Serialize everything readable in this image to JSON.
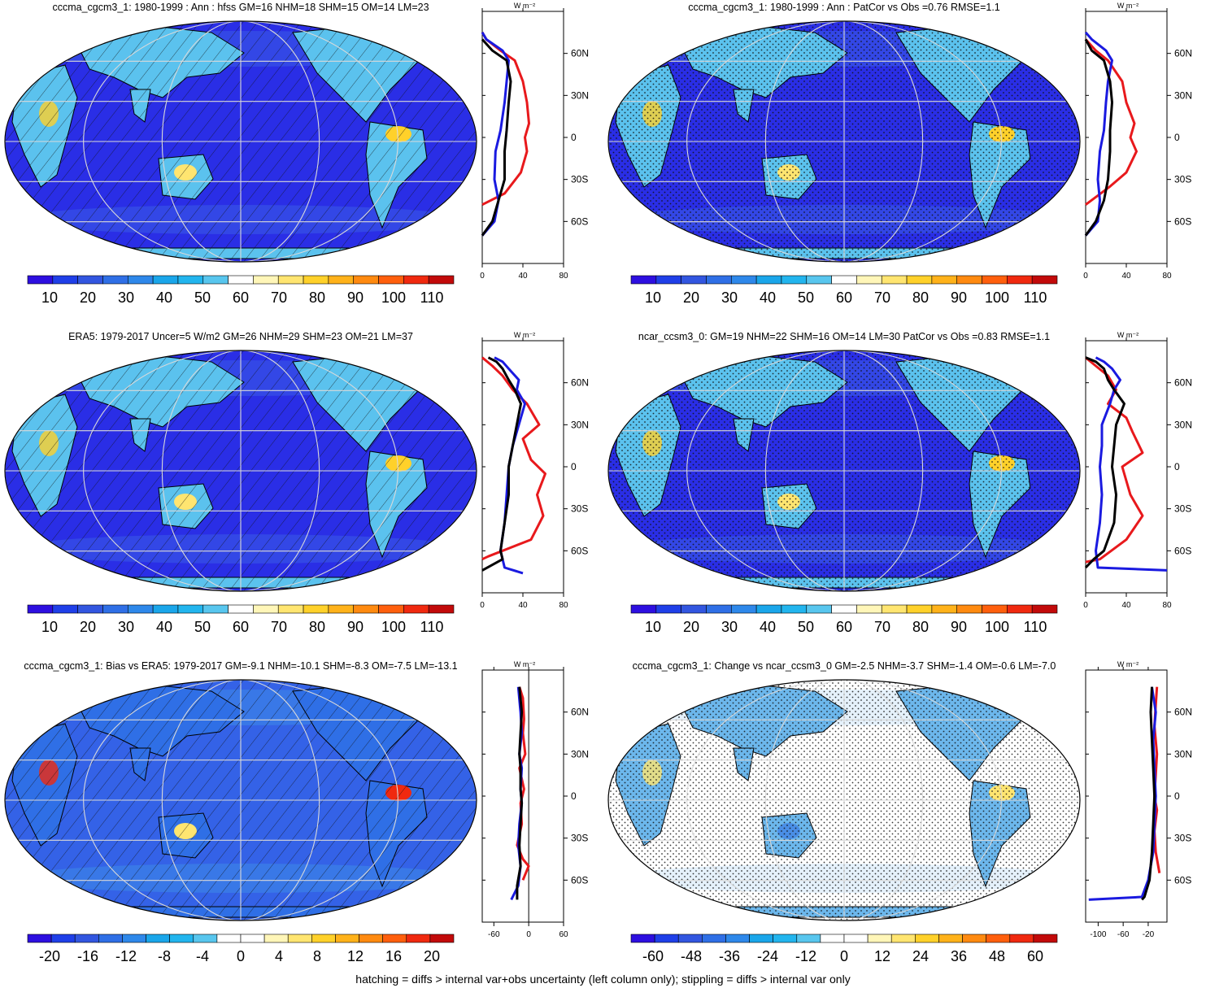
{
  "panels": [
    {
      "title": "cccma_cgcm3_1: 1980-1999 : Ann : hfss GM=16 NHM=18 SHM=15 OM=14 LM=23",
      "title_x": 281,
      "pattern": "hatch",
      "colorbar": [
        "10",
        "20",
        "30",
        "40",
        "50",
        "60",
        "70",
        "80",
        "90",
        "100",
        "110"
      ],
      "colorbar_scheme": "abs",
      "zonal": {
        "units": "W m⁻²",
        "x_ticks": [
          "0",
          "40",
          "80"
        ],
        "xlim": [
          0,
          80
        ],
        "zero_line": false,
        "series": [
          {
            "name": "model",
            "color": "#e8191c",
            "x": [
              0,
              22,
              38,
              44,
              42,
              46,
              44,
              40,
              32,
              18,
              4,
              0
            ],
            "lat": [
              -48,
              -40,
              -25,
              -10,
              0,
              10,
              25,
              40,
              55,
              62,
              70,
              75
            ]
          },
          {
            "name": "obs",
            "color": "#1a1ae0",
            "x": [
              0,
              12,
              16,
              12,
              13,
              18,
              22,
              24,
              26,
              20,
              4,
              0
            ],
            "lat": [
              -70,
              -60,
              -45,
              -30,
              -10,
              5,
              25,
              40,
              55,
              62,
              70,
              75
            ]
          },
          {
            "name": "other",
            "color": "#000000",
            "x": [
              0,
              10,
              16,
              22,
              22,
              24,
              26,
              28,
              24,
              10,
              0
            ],
            "lat": [
              -70,
              -60,
              -45,
              -30,
              -10,
              5,
              25,
              40,
              55,
              62,
              70
            ]
          }
        ]
      }
    },
    {
      "title": "cccma_cgcm3_1: 1980-1999 : Ann : PatCor vs Obs =0.76 RMSE=1.1",
      "title_x": 1037,
      "pattern": "stipple",
      "colorbar": [
        "10",
        "20",
        "30",
        "40",
        "50",
        "60",
        "70",
        "80",
        "90",
        "100",
        "110"
      ],
      "colorbar_scheme": "abs",
      "zonal": {
        "units": "W m⁻²",
        "x_ticks": [
          "0",
          "40",
          "80"
        ],
        "xlim": [
          0,
          80
        ],
        "zero_line": false,
        "series": [
          {
            "name": "model",
            "color": "#e8191c",
            "x": [
              0,
              24,
              40,
              50,
              44,
              48,
              40,
              36,
              22,
              10,
              0
            ],
            "lat": [
              -48,
              -35,
              -25,
              -10,
              0,
              10,
              25,
              40,
              55,
              62,
              70
            ]
          },
          {
            "name": "obs",
            "color": "#1a1ae0",
            "x": [
              0,
              12,
              14,
              12,
              14,
              18,
              20,
              22,
              26,
              20,
              6,
              0
            ],
            "lat": [
              -70,
              -60,
              -45,
              -30,
              -10,
              5,
              25,
              40,
              55,
              62,
              70,
              75
            ]
          },
          {
            "name": "other",
            "color": "#000000",
            "x": [
              0,
              10,
              18,
              22,
              24,
              24,
              26,
              24,
              18,
              6,
              0
            ],
            "lat": [
              -70,
              -60,
              -45,
              -30,
              -10,
              5,
              25,
              40,
              55,
              62,
              70
            ]
          }
        ]
      }
    },
    {
      "title": "ERA5: 1979-2017 Uncer=5 W/m2 GM=26 NHM=29 SHM=23 OM=21 LM=37",
      "title_x": 288,
      "pattern": "hatch",
      "colorbar": [
        "10",
        "20",
        "30",
        "40",
        "50",
        "60",
        "70",
        "80",
        "90",
        "100",
        "110"
      ],
      "colorbar_scheme": "abs",
      "zonal": {
        "units": "W m⁻²",
        "x_ticks": [
          "0",
          "40",
          "80"
        ],
        "xlim": [
          0,
          80
        ],
        "zero_line": false,
        "series": [
          {
            "name": "model",
            "color": "#e8191c",
            "x": [
              0,
              6,
              48,
              60,
              54,
              62,
              48,
              40,
              56,
              44,
              30,
              20,
              10,
              0
            ],
            "lat": [
              -66,
              -64,
              -52,
              -35,
              -20,
              -5,
              5,
              20,
              30,
              45,
              55,
              65,
              72,
              78
            ]
          },
          {
            "name": "obs",
            "color": "#1a1ae0",
            "x": [
              40,
              22,
              18,
              22,
              24,
              26,
              30,
              36,
              42,
              34,
              36,
              26,
              20,
              12
            ],
            "lat": [
              -76,
              -72,
              -60,
              -40,
              -20,
              0,
              15,
              30,
              45,
              55,
              62,
              70,
              75,
              78
            ]
          },
          {
            "name": "other",
            "color": "#000000",
            "x": [
              0,
              20,
              18,
              22,
              26,
              26,
              30,
              34,
              38,
              32,
              26,
              20,
              14,
              6
            ],
            "lat": [
              -74,
              -66,
              -60,
              -40,
              -20,
              0,
              15,
              30,
              45,
              55,
              62,
              70,
              75,
              78
            ]
          }
        ]
      }
    },
    {
      "title": "ncar_ccsm3_0: GM=19 NHM=22 SHM=16 OM=14 LM=30 PatCor vs Obs =0.83 RMSE=1.1",
      "title_x": 1045,
      "pattern": "stipple",
      "colorbar": [
        "10",
        "20",
        "30",
        "40",
        "50",
        "60",
        "70",
        "80",
        "90",
        "100",
        "110"
      ],
      "colorbar_scheme": "abs",
      "zonal": {
        "units": "W m⁻²",
        "x_ticks": [
          "0",
          "40",
          "80"
        ],
        "xlim": [
          0,
          80
        ],
        "zero_line": false,
        "series": [
          {
            "name": "model",
            "color": "#e8191c",
            "x": [
              0,
              14,
              40,
              56,
              44,
              36,
              56,
              46,
              40,
              22,
              30,
              22,
              10,
              0
            ],
            "lat": [
              -68,
              -66,
              -52,
              -35,
              -20,
              0,
              10,
              25,
              35,
              45,
              55,
              65,
              72,
              78
            ]
          },
          {
            "name": "obs",
            "color": "#1a1ae0",
            "x": [
              80,
              12,
              10,
              14,
              16,
              14,
              16,
              16,
              24,
              28,
              34,
              26,
              18,
              10
            ],
            "lat": [
              -74,
              -72,
              -60,
              -40,
              -20,
              0,
              15,
              30,
              45,
              55,
              62,
              70,
              75,
              78
            ]
          },
          {
            "name": "other",
            "color": "#000000",
            "x": [
              0,
              8,
              18,
              28,
              30,
              26,
              28,
              30,
              38,
              28,
              22,
              18,
              10,
              0
            ],
            "lat": [
              -72,
              -66,
              -60,
              -40,
              -20,
              0,
              15,
              30,
              45,
              55,
              62,
              70,
              75,
              78
            ]
          }
        ]
      }
    },
    {
      "title": "cccma_cgcm3_1: Bias vs ERA5: 1979-2017 GM=-9.1 NHM=-10.1 SHM=-8.3 OM=-7.5 LM=-13.1",
      "title_x": 296,
      "pattern": "hatch",
      "colorbar": [
        "-20",
        "-16",
        "-12",
        "-8",
        "-4",
        "0",
        "4",
        "8",
        "12",
        "16",
        "20"
      ],
      "colorbar_scheme": "diff",
      "zonal": {
        "units": "W m⁻²",
        "x_ticks": [
          "-60",
          "0",
          "60"
        ],
        "xlim": [
          -80,
          60
        ],
        "zero_line": true,
        "series": [
          {
            "name": "model",
            "color": "#e8191c",
            "x": [
              -10,
              0,
              -10,
              -20,
              -12,
              -14,
              -8,
              -16,
              -6,
              -10,
              -8,
              -10,
              -16
            ],
            "lat": [
              -60,
              -50,
              -45,
              -35,
              -20,
              -5,
              5,
              20,
              30,
              45,
              55,
              70,
              78
            ]
          },
          {
            "name": "obs",
            "color": "#1a1ae0",
            "x": [
              -30,
              -18,
              -14,
              -18,
              -16,
              -12,
              -14,
              -12,
              -16,
              -12,
              -14,
              -18
            ],
            "lat": [
              -74,
              -64,
              -50,
              -35,
              -20,
              -5,
              5,
              20,
              30,
              45,
              60,
              78
            ]
          },
          {
            "name": "other",
            "color": "#000000",
            "x": [
              -20,
              -20,
              -14,
              -16,
              -14,
              -12,
              -14,
              -14,
              -16,
              -14,
              -12,
              -16
            ],
            "lat": [
              -74,
              -64,
              -50,
              -35,
              -20,
              -5,
              5,
              20,
              30,
              45,
              60,
              78
            ]
          }
        ]
      }
    },
    {
      "title": "cccma_cgcm3_1: Change vs ncar_ccsm3_0 GM=-2.5 NHM=-3.7 SHM=-1.4 OM=-0.6 LM=-7.0",
      "title_x": 1045,
      "pattern": "stipple",
      "colorbar": [
        "-60",
        "-48",
        "-36",
        "-24",
        "-12",
        "0",
        "12",
        "24",
        "36",
        "48",
        "60"
      ],
      "colorbar_scheme": "diff",
      "zonal": {
        "units": "W m⁻²",
        "x_ticks": [
          "-100",
          "-60",
          "-20"
        ],
        "xlim": [
          -120,
          10
        ],
        "zero_line": false,
        "series": [
          {
            "name": "model",
            "color": "#e8191c",
            "x": [
              -2,
              -8,
              -10,
              -6,
              -10,
              -8,
              -6,
              -10,
              -8,
              -6
            ],
            "lat": [
              -55,
              -40,
              -25,
              -10,
              0,
              15,
              30,
              50,
              65,
              78
            ]
          },
          {
            "name": "obs",
            "color": "#1a1ae0",
            "x": [
              -115,
              -30,
              -20,
              -12,
              -10,
              -8,
              -10,
              -12,
              -8,
              -14
            ],
            "lat": [
              -74,
              -72,
              -60,
              -40,
              -20,
              0,
              20,
              40,
              60,
              78
            ]
          },
          {
            "name": "other",
            "color": "#000000",
            "x": [
              -30,
              -26,
              -18,
              -14,
              -12,
              -10,
              -12,
              -14,
              -16,
              -14
            ],
            "lat": [
              -74,
              -72,
              -60,
              -40,
              -20,
              0,
              20,
              40,
              60,
              78
            ]
          }
        ]
      }
    }
  ],
  "lat_ticks": [
    "60N",
    "30N",
    "0",
    "30S",
    "60S"
  ],
  "lat_values": [
    60,
    30,
    0,
    -30,
    -60
  ],
  "colors": {
    "abs": [
      "#2d0fe0",
      "#1f3fe8",
      "#3256e0",
      "#2f6fe6",
      "#2e88ea",
      "#1aa6ea",
      "#22b5ee",
      "#58c6ee",
      "#ffffff",
      "#fff6b8",
      "#ffe570",
      "#ffd12a",
      "#ffb21a",
      "#ff8a10",
      "#ff5f0d",
      "#f0290f",
      "#c20a0a"
    ],
    "diff": [
      "#2d0fe0",
      "#1f3fe8",
      "#3256e0",
      "#2f6fe6",
      "#2e88ea",
      "#1aa6ea",
      "#22b5ee",
      "#58c6ee",
      "#ffffff",
      "#ffffff",
      "#fff6b8",
      "#ffe570",
      "#ffd12a",
      "#ffb21a",
      "#ff8a10",
      "#ff5f0d",
      "#f0290f",
      "#c20a0a"
    ]
  },
  "footnote": "hatching = diffs > internal var+obs uncertainty (left column only); stippling = diffs > internal var only"
}
